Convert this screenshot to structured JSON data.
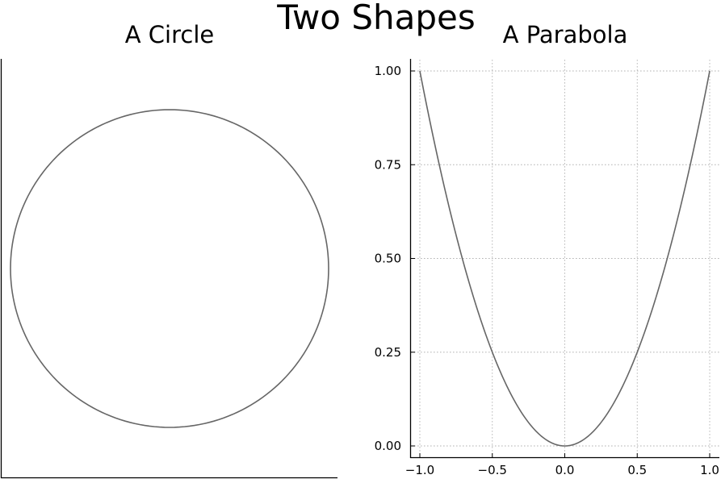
{
  "chart_data": {
    "title": "Two Shapes",
    "panels": [
      {
        "type": "line",
        "title": "A Circle",
        "shape": "circle",
        "center": [
          0,
          0
        ],
        "radius": 1,
        "axes_visible": false,
        "grid": false,
        "series": [
          {
            "color": "#666666"
          }
        ]
      },
      {
        "type": "line",
        "title": "A Parabola",
        "function": "y = x^2",
        "xlim": [
          -1.0,
          1.0
        ],
        "ylim": [
          0.0,
          1.0
        ],
        "xticks": [
          -1.0,
          -0.5,
          0.0,
          0.5,
          1.0
        ],
        "xtick_labels": [
          "−1.0",
          "−0.5",
          "0.0",
          "0.5",
          "1.0"
        ],
        "yticks": [
          0.0,
          0.25,
          0.5,
          0.75,
          1.0
        ],
        "ytick_labels": [
          "0.00",
          "0.25",
          "0.50",
          "0.75",
          "1.00"
        ],
        "grid": true,
        "series": [
          {
            "color": "#666666",
            "x": [
              -1.0,
              -0.9,
              -0.8,
              -0.7,
              -0.6,
              -0.5,
              -0.4,
              -0.3,
              -0.2,
              -0.1,
              0.0,
              0.1,
              0.2,
              0.3,
              0.4,
              0.5,
              0.6,
              0.7,
              0.8,
              0.9,
              1.0
            ],
            "y": [
              1.0,
              0.81,
              0.64,
              0.49,
              0.36,
              0.25,
              0.16,
              0.09,
              0.04,
              0.01,
              0.0,
              0.01,
              0.04,
              0.09,
              0.16,
              0.25,
              0.36,
              0.49,
              0.64,
              0.81,
              1.0
            ]
          }
        ]
      }
    ]
  }
}
